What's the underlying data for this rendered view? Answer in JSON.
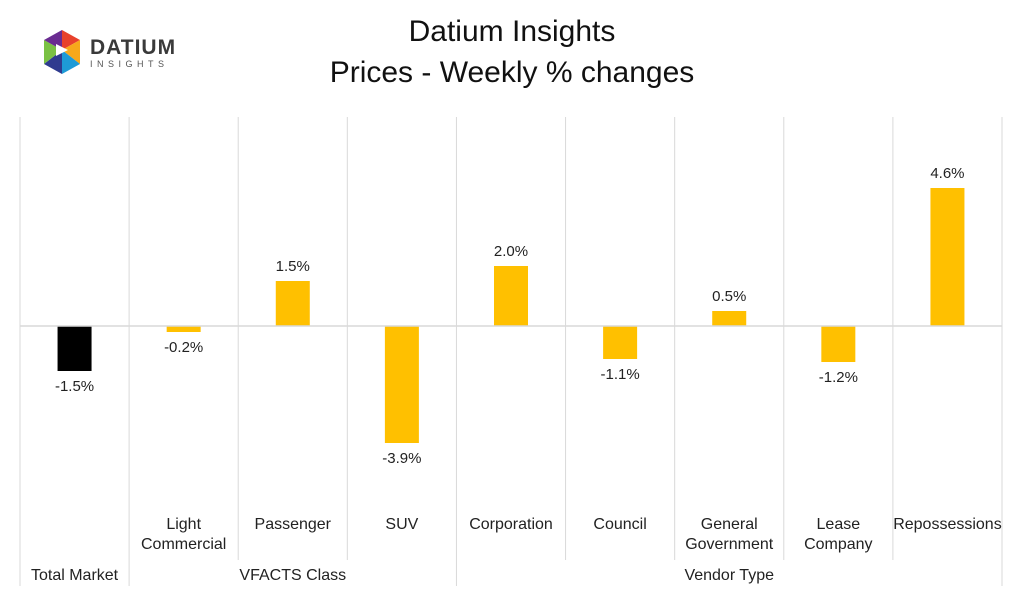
{
  "logo": {
    "word": "DATIUM",
    "sub": "INSIGHTS",
    "colors": [
      "#e8412c",
      "#f7a81b",
      "#1e9ad6",
      "#2f3b8f",
      "#7ac143",
      "#6a2c91"
    ]
  },
  "chart_data": {
    "type": "bar",
    "title": "Datium Insights",
    "subtitle": "Prices - Weekly % changes",
    "categories": [
      [
        "Total Market"
      ],
      [
        "Light",
        "Commercial"
      ],
      [
        "Passenger"
      ],
      [
        "SUV"
      ],
      [
        "Corporation"
      ],
      [
        "Council"
      ],
      [
        "General",
        "Government"
      ],
      [
        "Lease",
        "Company"
      ],
      [
        "Repossessions"
      ]
    ],
    "values": [
      -1.5,
      -0.2,
      1.5,
      -3.9,
      2.0,
      -1.1,
      0.5,
      -1.2,
      4.6
    ],
    "data_labels": [
      "-1.5%",
      "-0.2%",
      "1.5%",
      "-3.9%",
      "2.0%",
      "-1.1%",
      "0.5%",
      "-1.2%",
      "4.6%"
    ],
    "groups": [
      {
        "label": "Total Market",
        "start": 0,
        "end": 0
      },
      {
        "label": "VFACTS Class",
        "start": 1,
        "end": 3
      },
      {
        "label": "Vendor Type",
        "start": 4,
        "end": 8
      }
    ],
    "colors": {
      "highlight": "#000000",
      "bar": "#ffc000",
      "grid": "#d9d9d9"
    },
    "ylim": [
      -5.0,
      5.0
    ],
    "xlabel": "",
    "ylabel": ""
  }
}
